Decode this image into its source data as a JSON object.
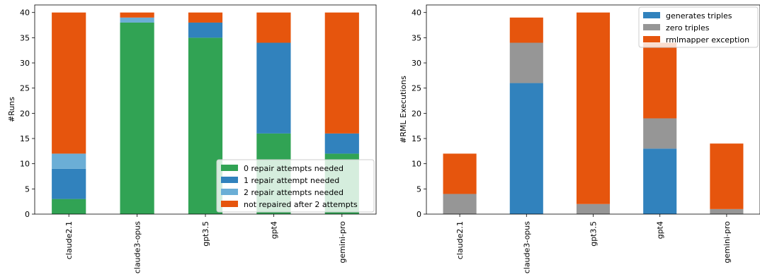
{
  "chart_data": [
    {
      "type": "bar",
      "stacked": true,
      "categories": [
        "claude2.1",
        "claude3-opus",
        "gpt3.5",
        "gpt4",
        "gemini-pro"
      ],
      "series": [
        {
          "name": "0 repair attempts needed",
          "color": "#31a354",
          "values": [
            3,
            38,
            35,
            16,
            12
          ]
        },
        {
          "name": "1 repair attempt needed",
          "color": "#3182bd",
          "values": [
            6,
            0,
            3,
            18,
            4
          ]
        },
        {
          "name": "2 repair attempts needed",
          "color": "#6baed6",
          "values": [
            3,
            1,
            0,
            0,
            0
          ]
        },
        {
          "name": "not repaired after 2 attempts",
          "color": "#e6550d",
          "values": [
            28,
            1,
            2,
            6,
            24
          ]
        }
      ],
      "xlabel": "",
      "ylabel": "#Runs",
      "ylim": [
        0,
        41.5
      ],
      "yticks": [
        0,
        5,
        10,
        15,
        20,
        25,
        30,
        35,
        40
      ],
      "legend": "lower-right",
      "grid": false
    },
    {
      "type": "bar",
      "stacked": true,
      "categories": [
        "claude2.1",
        "claude3-opus",
        "gpt3.5",
        "gpt4",
        "gemini-pro"
      ],
      "series": [
        {
          "name": "generates triples",
          "color": "#3182bd",
          "values": [
            0,
            26,
            0,
            13,
            0
          ]
        },
        {
          "name": "zero triples",
          "color": "#969696",
          "values": [
            4,
            8,
            2,
            6,
            1
          ]
        },
        {
          "name": "rmlmapper exception",
          "color": "#e6550d",
          "values": [
            8,
            5,
            38,
            15,
            13
          ]
        }
      ],
      "xlabel": "",
      "ylabel": "#RML Executions",
      "ylim": [
        0,
        41.5
      ],
      "yticks": [
        0,
        5,
        10,
        15,
        20,
        25,
        30,
        35,
        40
      ],
      "legend": "upper-right",
      "grid": false
    }
  ]
}
